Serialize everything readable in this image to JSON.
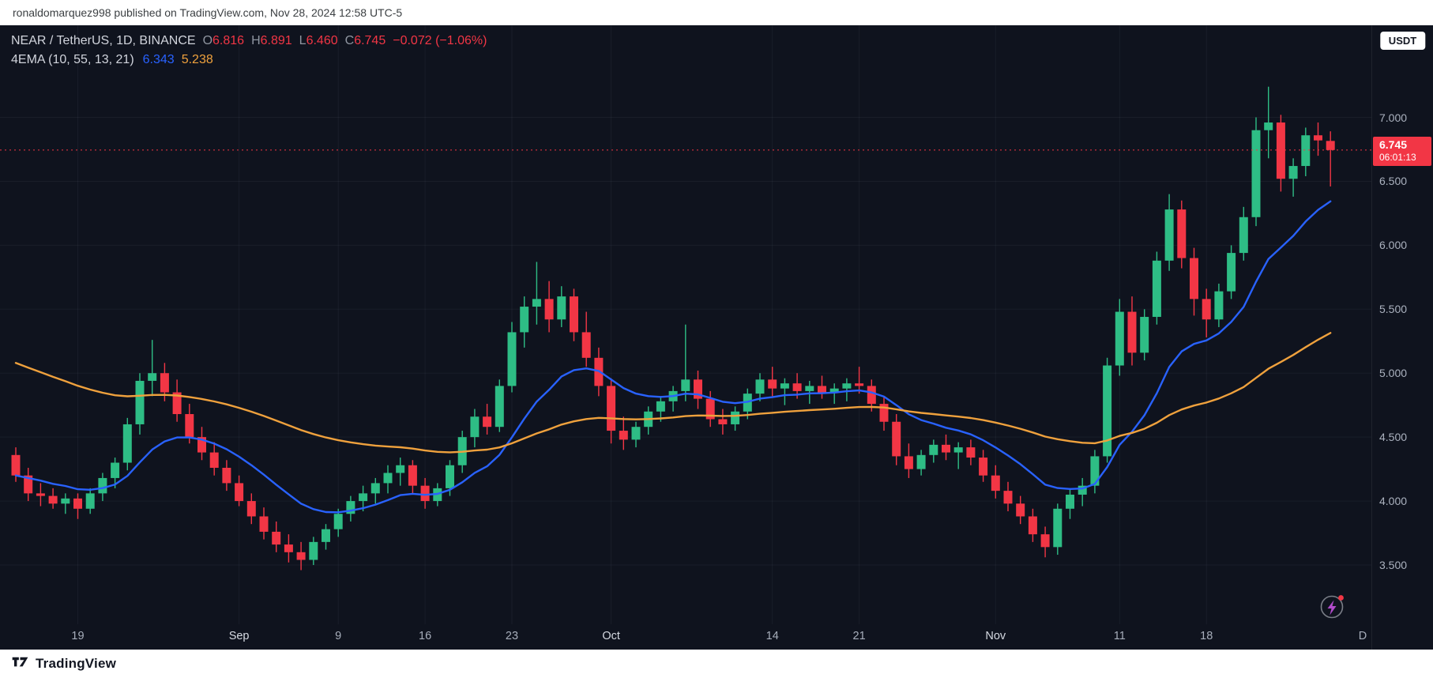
{
  "header": {
    "attribution": "ronaldomarquez998 published on TradingView.com, Nov 28, 2024 12:58 UTC-5"
  },
  "symbol_bar": {
    "title": "NEAR / TetherUS, 1D, BINANCE",
    "ohlc": {
      "o_label": "O",
      "o": "6.816",
      "h_label": "H",
      "h": "6.891",
      "l_label": "L",
      "l": "6.460",
      "c_label": "C",
      "c": "6.745",
      "change": "−0.072 (−1.06%)"
    },
    "indicator": {
      "label": "4EMA (10, 55, 13, 21)",
      "fast_value": "6.343",
      "slow_value": "5.238"
    }
  },
  "price_axis": {
    "currency_button": "USDT",
    "ticks": [
      {
        "label": "7.000",
        "value": 7.0
      },
      {
        "label": "6.500",
        "value": 6.5
      },
      {
        "label": "6.000",
        "value": 6.0
      },
      {
        "label": "5.500",
        "value": 5.5
      },
      {
        "label": "5.000",
        "value": 5.0
      },
      {
        "label": "4.500",
        "value": 4.5
      },
      {
        "label": "4.000",
        "value": 4.0
      },
      {
        "label": "3.500",
        "value": 3.5
      }
    ],
    "last_price_label": "6.745",
    "countdown": "06:01:13"
  },
  "time_axis": {
    "labels": [
      {
        "text": "19",
        "index": 5
      },
      {
        "text": "Sep",
        "index": 18,
        "month": true
      },
      {
        "text": "9",
        "index": 26
      },
      {
        "text": "16",
        "index": 33
      },
      {
        "text": "23",
        "index": 40
      },
      {
        "text": "Oct",
        "index": 48,
        "month": true
      },
      {
        "text": "14",
        "index": 61
      },
      {
        "text": "21",
        "index": 68
      },
      {
        "text": "Nov",
        "index": 79,
        "month": true
      },
      {
        "text": "11",
        "index": 89
      },
      {
        "text": "18",
        "index": 96
      },
      {
        "text": "D",
        "edge": true
      }
    ]
  },
  "footer": {
    "brand": "TradingView"
  },
  "chart_data": {
    "type": "candlestick",
    "title": "NEAR / TetherUS, 1D, BINANCE",
    "interval": "1D",
    "ylim": [
      2.95,
      7.3
    ],
    "price_gridlines": [
      3.5,
      4.0,
      4.5,
      5.0,
      5.5,
      6.0,
      6.5,
      7.0
    ],
    "last_price": 6.745,
    "columns": [
      "date",
      "open",
      "high",
      "low",
      "close"
    ],
    "candles": [
      [
        "2024-08-14",
        4.36,
        4.42,
        4.15,
        4.2
      ],
      [
        "2024-08-15",
        4.2,
        4.26,
        4.0,
        4.06
      ],
      [
        "2024-08-16",
        4.06,
        4.14,
        3.96,
        4.04
      ],
      [
        "2024-08-17",
        4.04,
        4.1,
        3.94,
        3.98
      ],
      [
        "2024-08-18",
        3.98,
        4.06,
        3.9,
        4.02
      ],
      [
        "2024-08-19",
        4.02,
        4.06,
        3.86,
        3.94
      ],
      [
        "2024-08-20",
        3.94,
        4.1,
        3.9,
        4.06
      ],
      [
        "2024-08-21",
        4.06,
        4.22,
        4.0,
        4.18
      ],
      [
        "2024-08-22",
        4.18,
        4.34,
        4.1,
        4.3
      ],
      [
        "2024-08-23",
        4.3,
        4.65,
        4.24,
        4.6
      ],
      [
        "2024-08-24",
        4.6,
        5.0,
        4.52,
        4.94
      ],
      [
        "2024-08-25",
        4.94,
        5.26,
        4.82,
        5.0
      ],
      [
        "2024-08-26",
        5.0,
        5.08,
        4.78,
        4.85
      ],
      [
        "2024-08-27",
        4.85,
        4.95,
        4.62,
        4.68
      ],
      [
        "2024-08-28",
        4.68,
        4.76,
        4.45,
        4.5
      ],
      [
        "2024-08-29",
        4.5,
        4.58,
        4.32,
        4.38
      ],
      [
        "2024-08-30",
        4.38,
        4.46,
        4.2,
        4.26
      ],
      [
        "2024-08-31",
        4.26,
        4.32,
        4.08,
        4.14
      ],
      [
        "2024-09-01",
        4.14,
        4.2,
        3.96,
        4.0
      ],
      [
        "2024-09-02",
        4.0,
        4.06,
        3.82,
        3.88
      ],
      [
        "2024-09-03",
        3.88,
        3.95,
        3.7,
        3.76
      ],
      [
        "2024-09-04",
        3.76,
        3.84,
        3.6,
        3.66
      ],
      [
        "2024-09-05",
        3.66,
        3.74,
        3.52,
        3.6
      ],
      [
        "2024-09-06",
        3.6,
        3.68,
        3.46,
        3.54
      ],
      [
        "2024-09-07",
        3.54,
        3.72,
        3.5,
        3.68
      ],
      [
        "2024-09-08",
        3.68,
        3.82,
        3.62,
        3.78
      ],
      [
        "2024-09-09",
        3.78,
        3.94,
        3.72,
        3.9
      ],
      [
        "2024-09-10",
        3.9,
        4.04,
        3.84,
        4.0
      ],
      [
        "2024-09-11",
        4.0,
        4.12,
        3.92,
        4.06
      ],
      [
        "2024-09-12",
        4.06,
        4.18,
        3.98,
        4.14
      ],
      [
        "2024-09-13",
        4.14,
        4.28,
        4.06,
        4.22
      ],
      [
        "2024-09-14",
        4.22,
        4.34,
        4.12,
        4.28
      ],
      [
        "2024-09-15",
        4.28,
        4.32,
        4.06,
        4.12
      ],
      [
        "2024-09-16",
        4.12,
        4.18,
        3.94,
        4.0
      ],
      [
        "2024-09-17",
        4.0,
        4.14,
        3.96,
        4.1
      ],
      [
        "2024-09-18",
        4.1,
        4.32,
        4.04,
        4.28
      ],
      [
        "2024-09-19",
        4.28,
        4.55,
        4.22,
        4.5
      ],
      [
        "2024-09-20",
        4.5,
        4.72,
        4.42,
        4.66
      ],
      [
        "2024-09-21",
        4.66,
        4.76,
        4.52,
        4.58
      ],
      [
        "2024-09-22",
        4.58,
        4.95,
        4.54,
        4.9
      ],
      [
        "2024-09-23",
        4.9,
        5.4,
        4.85,
        5.32
      ],
      [
        "2024-09-24",
        5.32,
        5.6,
        5.2,
        5.52
      ],
      [
        "2024-09-25",
        5.52,
        5.87,
        5.38,
        5.58
      ],
      [
        "2024-09-26",
        5.58,
        5.72,
        5.32,
        5.42
      ],
      [
        "2024-09-27",
        5.42,
        5.68,
        5.36,
        5.6
      ],
      [
        "2024-09-28",
        5.6,
        5.66,
        5.25,
        5.32
      ],
      [
        "2024-09-29",
        5.32,
        5.48,
        5.05,
        5.12
      ],
      [
        "2024-09-30",
        5.12,
        5.2,
        4.82,
        4.9
      ],
      [
        "2024-10-01",
        4.9,
        4.96,
        4.45,
        4.55
      ],
      [
        "2024-10-02",
        4.55,
        4.66,
        4.4,
        4.48
      ],
      [
        "2024-10-03",
        4.48,
        4.62,
        4.42,
        4.58
      ],
      [
        "2024-10-04",
        4.58,
        4.74,
        4.52,
        4.7
      ],
      [
        "2024-10-05",
        4.7,
        4.82,
        4.62,
        4.78
      ],
      [
        "2024-10-06",
        4.78,
        4.9,
        4.7,
        4.86
      ],
      [
        "2024-10-07",
        4.86,
        5.38,
        4.78,
        4.95
      ],
      [
        "2024-10-08",
        4.95,
        5.02,
        4.72,
        4.8
      ],
      [
        "2024-10-09",
        4.8,
        4.86,
        4.58,
        4.64
      ],
      [
        "2024-10-10",
        4.64,
        4.72,
        4.52,
        4.6
      ],
      [
        "2024-10-11",
        4.6,
        4.74,
        4.55,
        4.7
      ],
      [
        "2024-10-12",
        4.7,
        4.88,
        4.64,
        4.84
      ],
      [
        "2024-10-13",
        4.84,
        5.0,
        4.78,
        4.95
      ],
      [
        "2024-10-14",
        4.95,
        5.05,
        4.82,
        4.88
      ],
      [
        "2024-10-15",
        4.88,
        4.96,
        4.75,
        4.92
      ],
      [
        "2024-10-16",
        4.92,
        5.0,
        4.8,
        4.86
      ],
      [
        "2024-10-17",
        4.86,
        4.94,
        4.76,
        4.9
      ],
      [
        "2024-10-18",
        4.9,
        4.98,
        4.8,
        4.85
      ],
      [
        "2024-10-19",
        4.85,
        4.92,
        4.76,
        4.88
      ],
      [
        "2024-10-20",
        4.88,
        4.96,
        4.78,
        4.92
      ],
      [
        "2024-10-21",
        4.92,
        5.05,
        4.84,
        4.9
      ],
      [
        "2024-10-22",
        4.9,
        4.95,
        4.7,
        4.76
      ],
      [
        "2024-10-23",
        4.76,
        4.82,
        4.55,
        4.62
      ],
      [
        "2024-10-24",
        4.62,
        4.68,
        4.28,
        4.35
      ],
      [
        "2024-10-25",
        4.35,
        4.45,
        4.18,
        4.25
      ],
      [
        "2024-10-26",
        4.25,
        4.4,
        4.2,
        4.36
      ],
      [
        "2024-10-27",
        4.36,
        4.48,
        4.3,
        4.44
      ],
      [
        "2024-10-28",
        4.44,
        4.52,
        4.32,
        4.38
      ],
      [
        "2024-10-29",
        4.38,
        4.46,
        4.25,
        4.42
      ],
      [
        "2024-10-30",
        4.42,
        4.48,
        4.28,
        4.34
      ],
      [
        "2024-10-31",
        4.34,
        4.4,
        4.15,
        4.2
      ],
      [
        "2024-11-01",
        4.2,
        4.28,
        4.02,
        4.08
      ],
      [
        "2024-11-02",
        4.08,
        4.15,
        3.92,
        3.98
      ],
      [
        "2024-11-03",
        3.98,
        4.04,
        3.82,
        3.88
      ],
      [
        "2024-11-04",
        3.88,
        3.94,
        3.68,
        3.74
      ],
      [
        "2024-11-05",
        3.74,
        3.8,
        3.56,
        3.64
      ],
      [
        "2024-11-06",
        3.64,
        3.98,
        3.58,
        3.94
      ],
      [
        "2024-11-07",
        3.94,
        4.1,
        3.86,
        4.05
      ],
      [
        "2024-11-08",
        4.05,
        4.18,
        3.96,
        4.12
      ],
      [
        "2024-11-09",
        4.12,
        4.4,
        4.06,
        4.35
      ],
      [
        "2024-11-10",
        4.35,
        5.12,
        4.3,
        5.06
      ],
      [
        "2024-11-11",
        5.06,
        5.58,
        4.98,
        5.48
      ],
      [
        "2024-11-12",
        5.48,
        5.6,
        5.06,
        5.16
      ],
      [
        "2024-11-13",
        5.16,
        5.5,
        5.1,
        5.44
      ],
      [
        "2024-11-14",
        5.44,
        5.95,
        5.38,
        5.88
      ],
      [
        "2024-11-15",
        5.88,
        6.4,
        5.8,
        6.28
      ],
      [
        "2024-11-16",
        6.28,
        6.35,
        5.82,
        5.9
      ],
      [
        "2024-11-17",
        5.9,
        5.98,
        5.45,
        5.58
      ],
      [
        "2024-11-18",
        5.58,
        5.66,
        5.28,
        5.42
      ],
      [
        "2024-11-19",
        5.42,
        5.7,
        5.36,
        5.64
      ],
      [
        "2024-11-20",
        5.64,
        6.0,
        5.58,
        5.94
      ],
      [
        "2024-11-21",
        5.94,
        6.3,
        5.88,
        6.22
      ],
      [
        "2024-11-22",
        6.22,
        7.0,
        6.15,
        6.9
      ],
      [
        "2024-11-23",
        6.9,
        7.24,
        6.68,
        6.96
      ],
      [
        "2024-11-24",
        6.96,
        7.02,
        6.42,
        6.52
      ],
      [
        "2024-11-25",
        6.52,
        6.68,
        6.38,
        6.62
      ],
      [
        "2024-11-26",
        6.62,
        6.92,
        6.54,
        6.86
      ],
      [
        "2024-11-27",
        6.86,
        6.96,
        6.7,
        6.82
      ],
      [
        "2024-11-28",
        6.816,
        6.891,
        6.46,
        6.745
      ]
    ],
    "indicators": [
      {
        "name": "ema-fast",
        "period": 13,
        "seed": 4.2,
        "color": "#2962ff",
        "current": 6.343
      },
      {
        "name": "ema-slow",
        "period": 55,
        "seed": 5.08,
        "color": "#efa13d",
        "current": 5.238
      }
    ],
    "colors": {
      "up": "#2ebd85",
      "down": "#f23645",
      "background": "#0f131e",
      "grid": "rgba(200,210,235,0.055)",
      "accent_blue": "#2962ff",
      "accent_orange": "#efa13d"
    }
  }
}
